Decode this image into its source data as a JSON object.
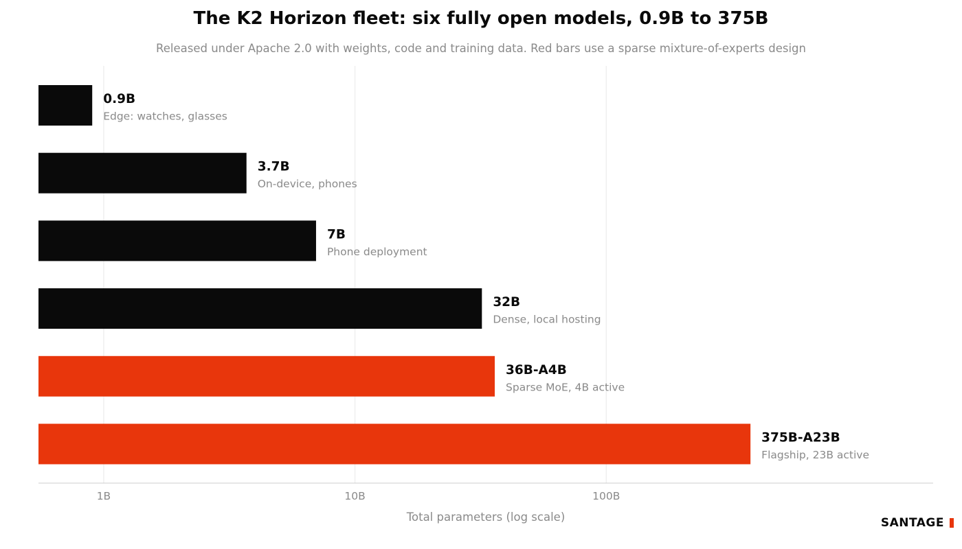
{
  "title": "The K2 Horizon fleet: six fully open models, 0.9B to 375B",
  "subtitle": "Released under Apache 2.0 with weights, code and training data. Red bars use a sparse mixture-of-experts design",
  "brand": "SANTAGE",
  "chart_data": {
    "type": "bar",
    "orientation": "horizontal",
    "x_scale": "log",
    "xlabel": "Total parameters (log scale)",
    "xlim": [
      0.55,
      2000
    ],
    "ticks": [
      {
        "value": 1,
        "label": "1B"
      },
      {
        "value": 10,
        "label": "10B"
      },
      {
        "value": 100,
        "label": "100B"
      }
    ],
    "grid": "vertical",
    "legend": "none",
    "colors": {
      "dense": "#0a0a0a",
      "moe": "#e8360c"
    },
    "bars": [
      {
        "value": 0.9,
        "label": "0.9B",
        "desc": "Edge: watches, glasses",
        "moe": false
      },
      {
        "value": 3.7,
        "label": "3.7B",
        "desc": "On-device, phones",
        "moe": false
      },
      {
        "value": 7,
        "label": "7B",
        "desc": "Phone deployment",
        "moe": false
      },
      {
        "value": 32,
        "label": "32B",
        "desc": "Dense, local hosting",
        "moe": false
      },
      {
        "value": 36,
        "label": "36B-A4B",
        "desc": "Sparse MoE, 4B active",
        "moe": true
      },
      {
        "value": 375,
        "label": "375B-A23B",
        "desc": "Flagship, 23B active",
        "moe": true
      }
    ]
  }
}
